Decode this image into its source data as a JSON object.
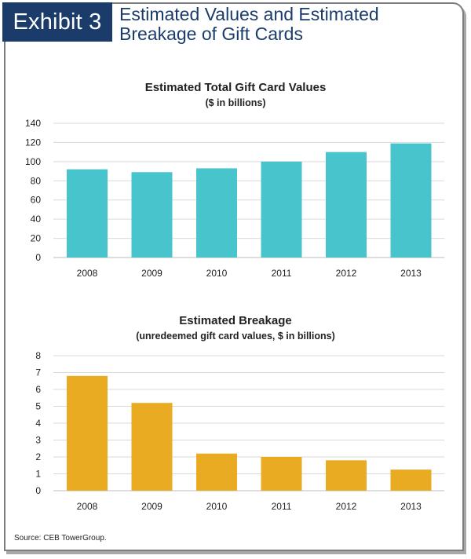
{
  "header": {
    "exhibit_label": "Exhibit 3",
    "title_line1": "Estimated Values and Estimated",
    "title_line2": "Breakage of Gift Cards"
  },
  "source": "Source: CEB TowerGroup.",
  "colors": {
    "navy": "#1b3c6b",
    "teal": "#47c4cc",
    "gold": "#e9ab21",
    "grid": "#d9d9d9"
  },
  "chart_data": [
    {
      "type": "bar",
      "title": "Estimated Total Gift Card Values",
      "subtitle": "($ in billions)",
      "categories": [
        "2008",
        "2009",
        "2010",
        "2011",
        "2012",
        "2013"
      ],
      "values": [
        92,
        89,
        93,
        100,
        110,
        119
      ],
      "ylim": [
        0,
        140
      ],
      "yticks": [
        0,
        20,
        40,
        60,
        80,
        100,
        120,
        140
      ],
      "grid": true,
      "color": "#47c4cc"
    },
    {
      "type": "bar",
      "title": "Estimated Breakage",
      "subtitle": "(unredeemed gift card values, $ in billions)",
      "categories": [
        "2008",
        "2009",
        "2010",
        "2011",
        "2012",
        "2013"
      ],
      "values": [
        6.8,
        5.2,
        2.2,
        2.0,
        1.8,
        1.25
      ],
      "ylim": [
        0,
        8
      ],
      "yticks": [
        0,
        1,
        2,
        3,
        4,
        5,
        6,
        7,
        8
      ],
      "grid": true,
      "color": "#e9ab21"
    }
  ]
}
